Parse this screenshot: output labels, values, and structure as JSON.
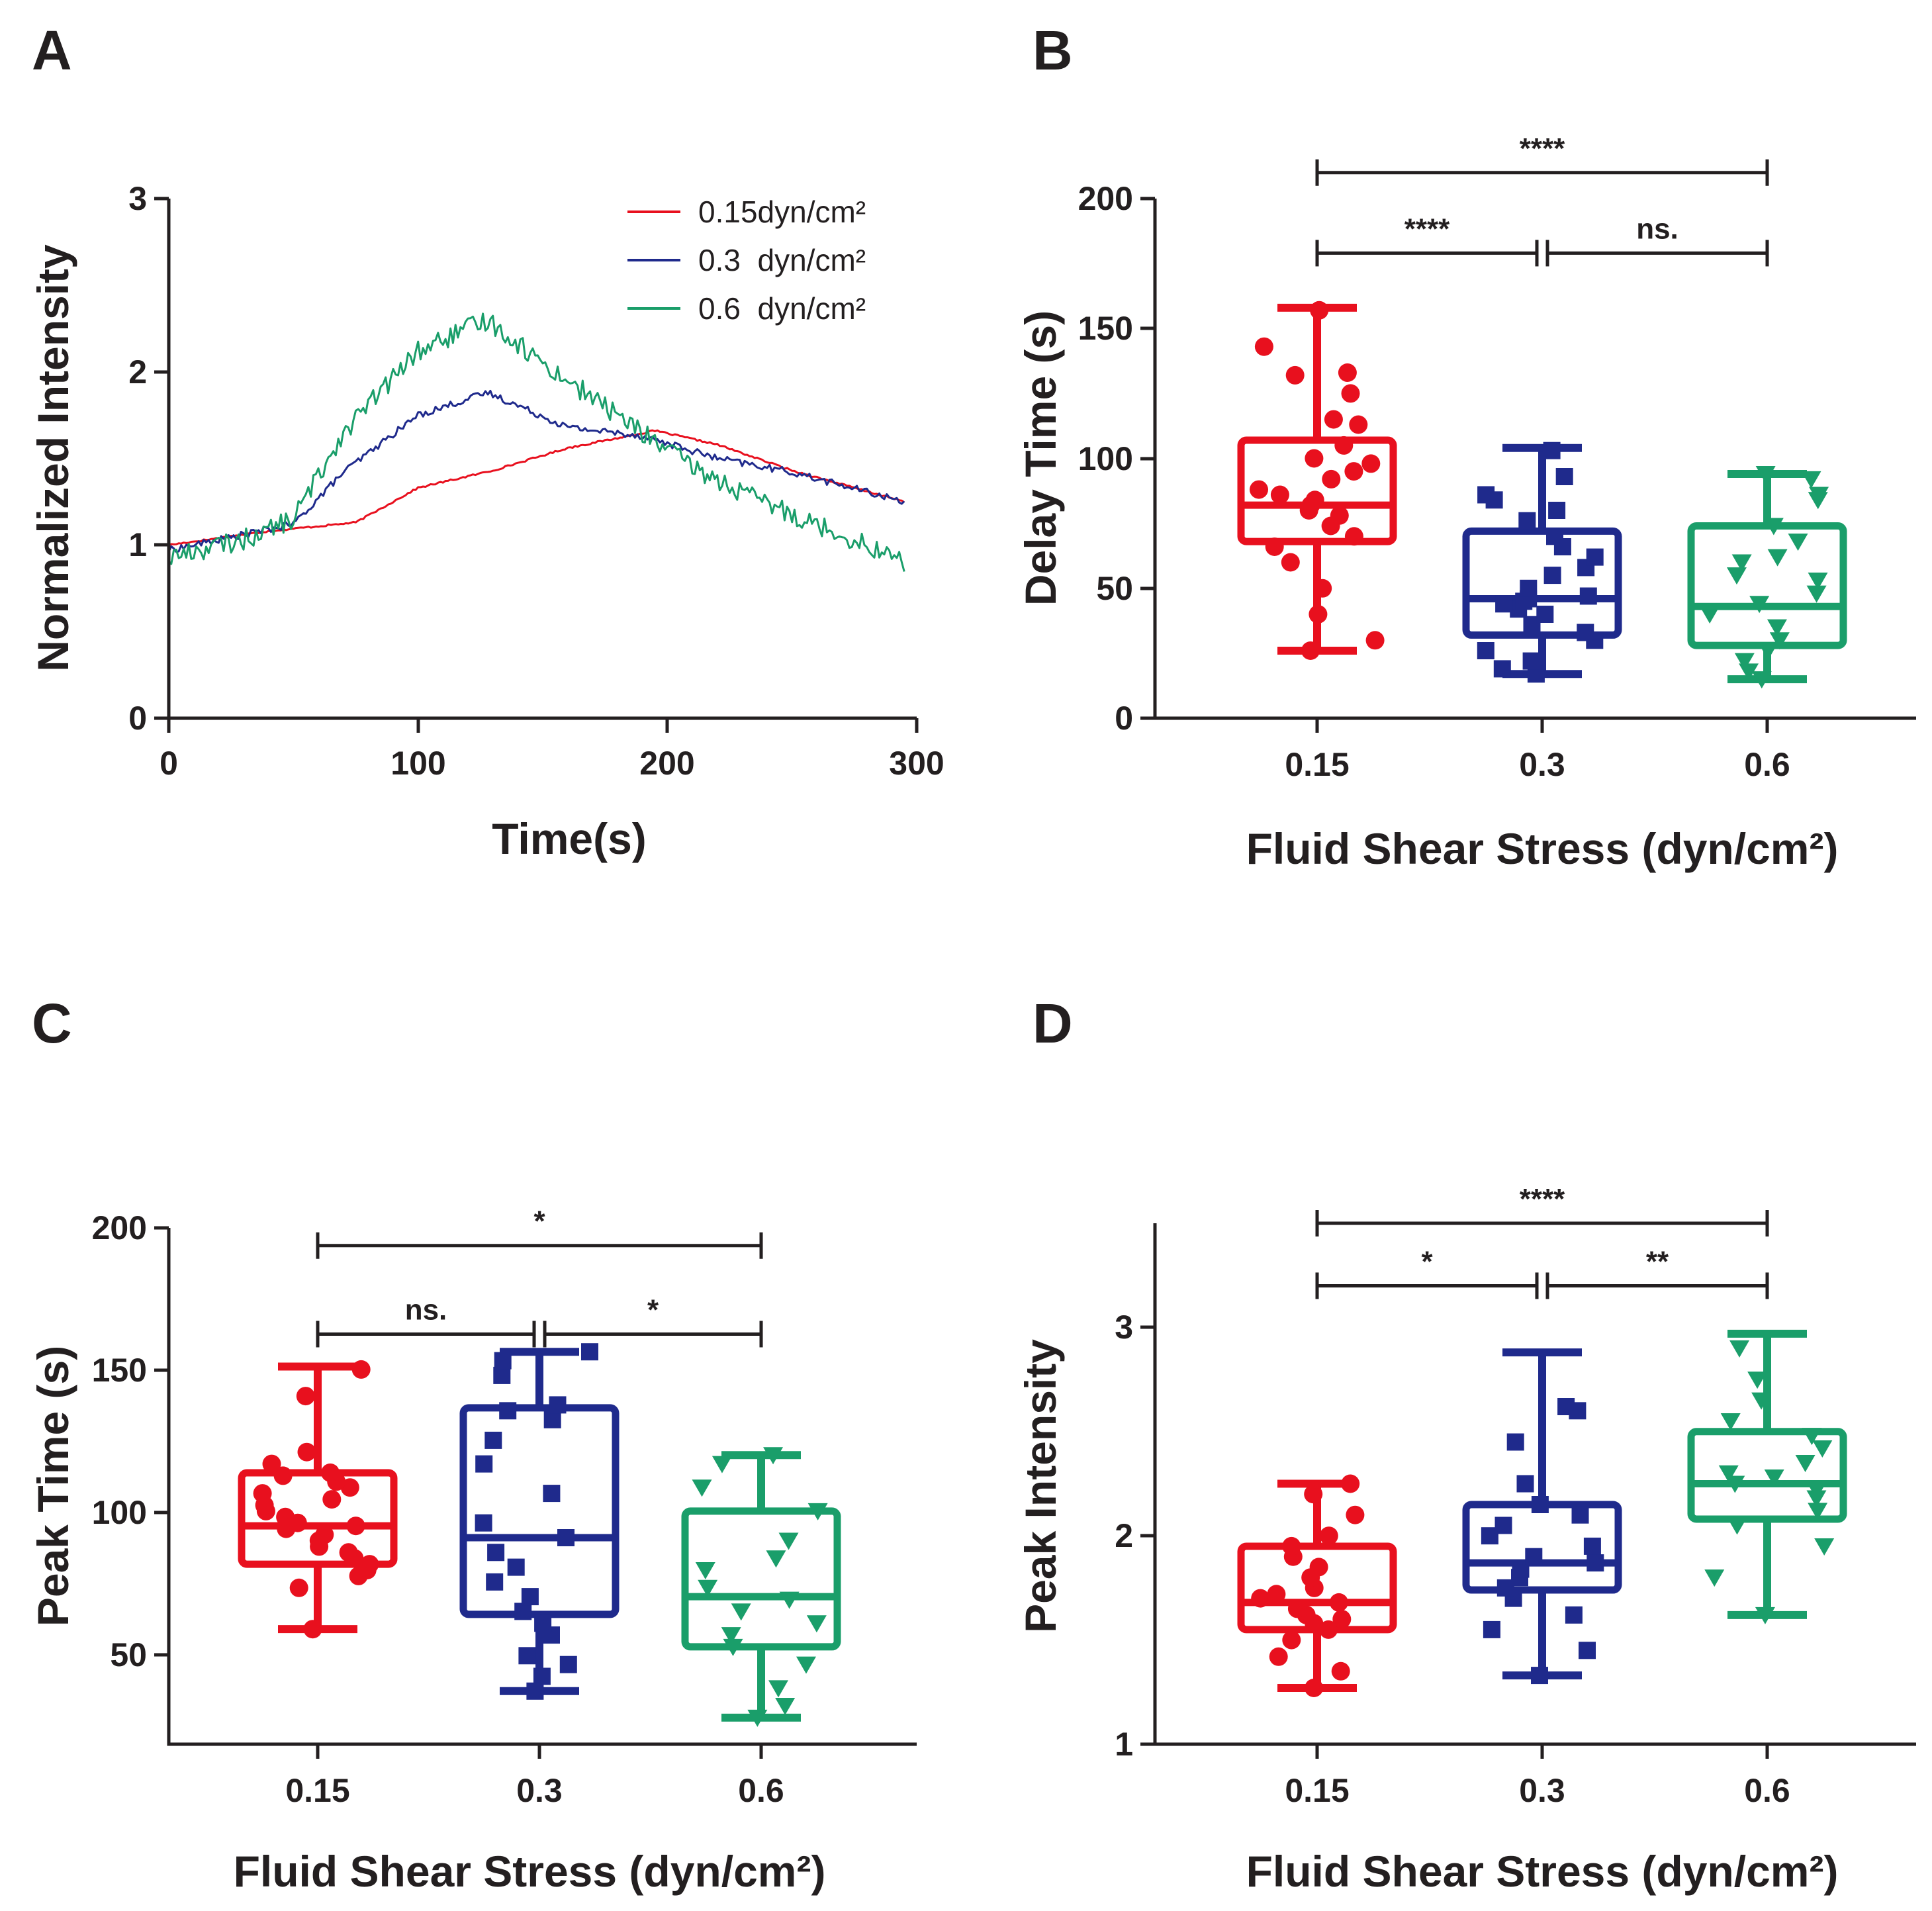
{
  "figure": {
    "colors": {
      "red": "#e8101e",
      "blue": "#1f2a8c",
      "green": "#1a9e6a",
      "axis": "#231f20"
    },
    "group_labels": [
      "0.15",
      "0.3",
      "0.6"
    ]
  },
  "chart_data": [
    {
      "panel": "A",
      "type": "line",
      "title": "",
      "xlabel": "Time(s)",
      "ylabel": "Normalized Intensity",
      "xlim": [
        0,
        300
      ],
      "ylim": [
        0,
        3
      ],
      "xticks": [
        "0",
        "100",
        "200",
        "300"
      ],
      "yticks": [
        "0",
        "1",
        "2",
        "3"
      ],
      "legend_position": "top-right",
      "series": [
        {
          "name": "0.15dyn/cm²",
          "color": "#e8101e",
          "noise": 0.005,
          "x": [
            0,
            40,
            75,
            80,
            100,
            130,
            160,
            195,
            220,
            250,
            295
          ],
          "y": [
            1.0,
            1.08,
            1.13,
            1.17,
            1.33,
            1.43,
            1.56,
            1.66,
            1.58,
            1.43,
            1.25
          ]
        },
        {
          "name": "0.3  dyn/cm²",
          "color": "#1f2a8c",
          "noise": 0.02,
          "x": [
            0,
            30,
            50,
            70,
            100,
            128,
            160,
            190,
            220,
            250,
            295
          ],
          "y": [
            0.97,
            1.06,
            1.12,
            1.42,
            1.75,
            1.88,
            1.68,
            1.63,
            1.5,
            1.42,
            1.25
          ]
        },
        {
          "name": "0.6  dyn/cm²",
          "color": "#1a9e6a",
          "noise": 0.06,
          "x": [
            0,
            30,
            50,
            70,
            100,
            128,
            150,
            175,
            190,
            210,
            230,
            260,
            280,
            295
          ],
          "y": [
            0.93,
            1.03,
            1.15,
            1.65,
            2.12,
            2.3,
            2.05,
            1.8,
            1.65,
            1.45,
            1.3,
            1.12,
            1.0,
            0.9
          ]
        }
      ]
    },
    {
      "panel": "B",
      "type": "box",
      "title": "",
      "xlabel": "Fluid Shear Stress (dyn/cm²)",
      "ylabel": "Delay Time (s)",
      "ylim": [
        0,
        200
      ],
      "yticks": [
        "0",
        "50",
        "100",
        "150",
        "200"
      ],
      "categories": [
        "0.15",
        "0.3",
        "0.6"
      ],
      "boxes": [
        {
          "min": 26,
          "q1": 68,
          "median": 82,
          "q3": 107,
          "max": 158,
          "color": "#e8101e",
          "marker": "circle",
          "points": [
            26,
            30,
            40,
            50,
            60,
            66,
            70,
            74,
            78,
            80,
            82,
            84,
            86,
            88,
            92,
            95,
            98,
            100,
            105,
            113,
            115,
            125,
            132,
            133,
            143,
            157
          ]
        },
        {
          "min": 17,
          "q1": 32,
          "median": 46,
          "q3": 72,
          "max": 104,
          "color": "#1f2a8c",
          "marker": "square",
          "points": [
            17,
            19,
            22,
            26,
            30,
            33,
            36,
            40,
            42,
            44,
            45,
            46,
            47,
            50,
            55,
            58,
            62,
            66,
            70,
            76,
            80,
            84,
            86,
            93,
            103
          ]
        },
        {
          "min": 15,
          "q1": 28,
          "median": 43,
          "q3": 74,
          "max": 94,
          "color": "#1a9e6a",
          "marker": "triangle",
          "points": [
            15,
            18,
            22,
            26,
            30,
            35,
            40,
            44,
            48,
            53,
            55,
            60,
            62,
            68,
            74,
            84,
            86,
            92,
            94
          ]
        }
      ],
      "significance": [
        {
          "from": 0,
          "to": 2,
          "label": "****",
          "y": 210
        },
        {
          "from": 0,
          "to": 1,
          "label": "****",
          "y": 179
        },
        {
          "from": 1,
          "to": 2,
          "label": "ns.",
          "y": 179
        }
      ]
    },
    {
      "panel": "C",
      "type": "box",
      "title": "",
      "xlabel": "Fluid Shear Stress (dyn/cm²)",
      "ylabel": "Peak Time (s)",
      "ylim": [
        25,
        200
      ],
      "yticks": [
        "50",
        "100",
        "150",
        "200"
      ],
      "categories": [
        "0.15",
        "0.3",
        "0.6"
      ],
      "boxes": [
        {
          "min": 64,
          "q1": 86,
          "median": 99,
          "q3": 117,
          "max": 153,
          "color": "#e8101e",
          "marker": "circle",
          "points": [
            64,
            78,
            82,
            84,
            86,
            88,
            90,
            92,
            94,
            96,
            98,
            99,
            100,
            102,
            104,
            106,
            108,
            110,
            112,
            114,
            116,
            117,
            120,
            124,
            143,
            152
          ]
        },
        {
          "min": 43,
          "q1": 69,
          "median": 95,
          "q3": 139,
          "max": 158,
          "color": "#1f2a8c",
          "marker": "square",
          "points": [
            43,
            48,
            52,
            55,
            62,
            66,
            70,
            75,
            80,
            85,
            90,
            95,
            100,
            110,
            120,
            128,
            135,
            138,
            140,
            150,
            155,
            158
          ]
        },
        {
          "min": 34,
          "q1": 58,
          "median": 75,
          "q3": 104,
          "max": 123,
          "color": "#1a9e6a",
          "marker": "triangle",
          "points": [
            34,
            38,
            44,
            52,
            58,
            62,
            66,
            70,
            74,
            78,
            84,
            88,
            94,
            104,
            112,
            120,
            123
          ]
        }
      ],
      "significance": [
        {
          "from": 0,
          "to": 2,
          "label": "*",
          "y": 194
        },
        {
          "from": 0,
          "to": 1,
          "label": "ns.",
          "y": 164
        },
        {
          "from": 1,
          "to": 2,
          "label": "*",
          "y": 164
        }
      ]
    },
    {
      "panel": "D",
      "type": "box",
      "title": "",
      "xlabel": "Fluid Shear Stress (dyn/cm²)",
      "ylabel": "Peak Intensity",
      "ylim": [
        1,
        3.5
      ],
      "yticks": [
        "1",
        "2",
        "3"
      ],
      "categories": [
        "0.15",
        "0.3",
        "0.6"
      ],
      "boxes": [
        {
          "min": 1.27,
          "q1": 1.55,
          "median": 1.68,
          "q3": 1.95,
          "max": 2.25,
          "color": "#e8101e",
          "marker": "circle",
          "points": [
            1.27,
            1.35,
            1.42,
            1.5,
            1.55,
            1.58,
            1.6,
            1.62,
            1.65,
            1.68,
            1.7,
            1.72,
            1.75,
            1.8,
            1.85,
            1.9,
            1.95,
            2.0,
            2.1,
            2.2,
            2.25
          ]
        },
        {
          "min": 1.33,
          "q1": 1.74,
          "median": 1.87,
          "q3": 2.15,
          "max": 2.88,
          "color": "#1f2a8c",
          "marker": "square",
          "points": [
            1.33,
            1.45,
            1.55,
            1.62,
            1.7,
            1.75,
            1.8,
            1.84,
            1.87,
            1.9,
            1.95,
            2.0,
            2.05,
            2.1,
            2.15,
            2.25,
            2.45,
            2.6,
            2.62
          ]
        },
        {
          "min": 1.62,
          "q1": 2.08,
          "median": 2.25,
          "q3": 2.5,
          "max": 2.97,
          "color": "#1a9e6a",
          "marker": "triangle",
          "points": [
            1.62,
            1.8,
            1.95,
            2.05,
            2.12,
            2.18,
            2.22,
            2.25,
            2.28,
            2.3,
            2.35,
            2.42,
            2.48,
            2.55,
            2.65,
            2.75,
            2.9
          ]
        }
      ],
      "significance": [
        {
          "from": 0,
          "to": 2,
          "label": "****",
          "y": 3.5
        },
        {
          "from": 0,
          "to": 1,
          "label": "*",
          "y": 3.2
        },
        {
          "from": 1,
          "to": 2,
          "label": "**",
          "y": 3.2
        }
      ]
    }
  ]
}
